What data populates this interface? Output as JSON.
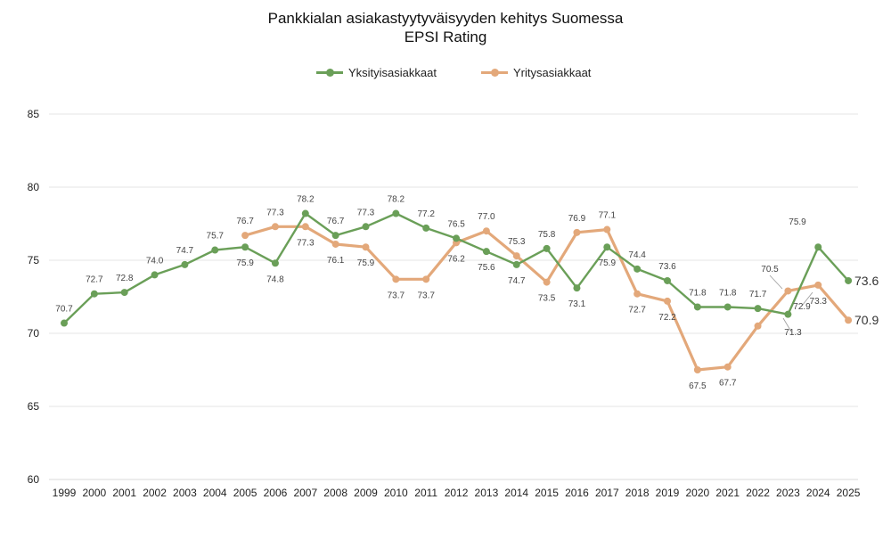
{
  "chart_data": {
    "type": "line",
    "title": "Pankkialan asiakastyytyväisyyden kehitys Suomessa",
    "subtitle": "EPSI Rating",
    "xlabel": "",
    "ylabel": "",
    "x": [
      "1999",
      "2000",
      "2001",
      "2002",
      "2003",
      "2004",
      "2005",
      "2006",
      "2007",
      "2008",
      "2009",
      "2010",
      "2011",
      "2012",
      "2013",
      "2014",
      "2015",
      "2016",
      "2017",
      "2018",
      "2019",
      "2020",
      "2021",
      "2022",
      "2023",
      "2024",
      "2025"
    ],
    "ylim": [
      60,
      85
    ],
    "yticks": [
      "60",
      "65",
      "70",
      "75",
      "80",
      "85"
    ],
    "grid": true,
    "legend_position": "top-center",
    "series": [
      {
        "name": "Yksityisasiakkaat",
        "color": "#6a9f58",
        "values": [
          70.7,
          72.7,
          72.8,
          74.0,
          74.7,
          75.7,
          75.9,
          74.8,
          78.2,
          76.7,
          77.3,
          78.2,
          77.2,
          76.5,
          75.6,
          74.7,
          75.8,
          73.1,
          75.9,
          74.4,
          73.6,
          71.8,
          71.8,
          71.7,
          71.3,
          75.9,
          73.6
        ],
        "labels": [
          "70.7",
          "72.7",
          "72.8",
          "74.0",
          "74.7",
          "75.7",
          "75.9",
          "74.8",
          "78.2",
          "76.7",
          "77.3",
          "78.2",
          "77.2",
          "76.5",
          "75.6",
          "74.7",
          "75.8",
          "73.1",
          "75.9",
          "74.4",
          "73.6",
          "71.8",
          "71.8",
          "71.7",
          "71.3",
          "75.9",
          "73.6"
        ]
      },
      {
        "name": "Yritysasiakkaat",
        "color": "#e3a87a",
        "values": [
          null,
          null,
          null,
          null,
          null,
          null,
          76.7,
          77.3,
          77.3,
          76.1,
          75.9,
          73.7,
          73.7,
          76.2,
          77.0,
          75.3,
          73.5,
          76.9,
          77.1,
          72.7,
          72.2,
          67.5,
          67.7,
          70.5,
          72.9,
          73.3,
          70.9
        ],
        "labels": [
          null,
          null,
          null,
          null,
          null,
          null,
          "76.7",
          "77.3",
          "77.3",
          "76.1",
          "75.9",
          "73.7",
          "73.7",
          "76.2",
          "77.0",
          "75.3",
          "73.5",
          "76.9",
          "77.1",
          "72.7",
          "72.2",
          "67.5",
          "67.7",
          "70.5",
          "72.9",
          "73.3",
          "70.9"
        ]
      }
    ]
  }
}
